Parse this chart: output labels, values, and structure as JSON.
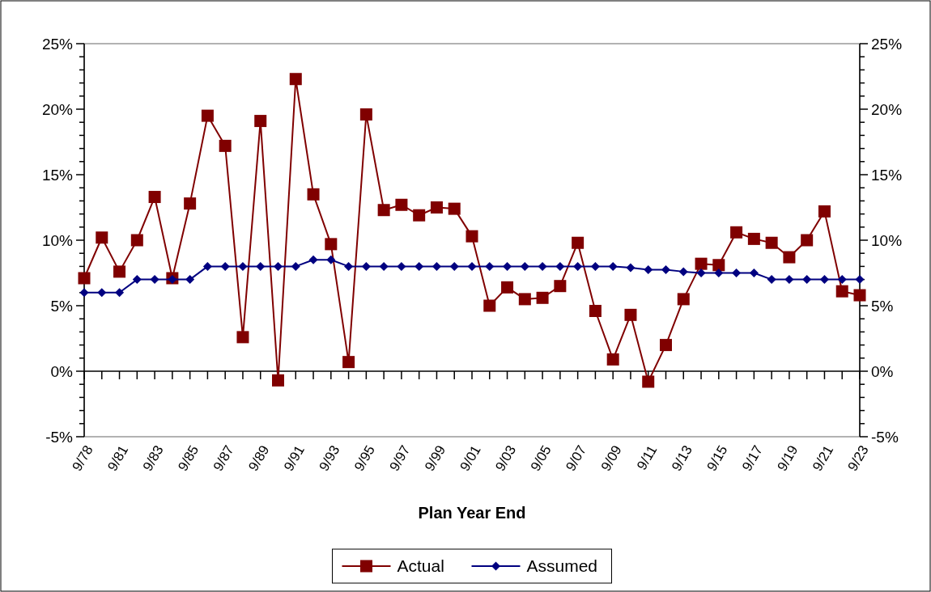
{
  "chart_data": {
    "type": "line",
    "xlabel": "Plan Year End",
    "categories": [
      "9/78",
      null,
      "9/81",
      null,
      "9/83",
      null,
      "9/85",
      null,
      "9/87",
      null,
      "9/89",
      null,
      "9/91",
      null,
      "9/93",
      null,
      "9/95",
      null,
      "9/97",
      null,
      "9/99",
      null,
      "9/01",
      null,
      "9/03",
      null,
      "9/05",
      null,
      "9/07",
      null,
      "9/09",
      null,
      "9/11",
      null,
      "9/13",
      null,
      "9/15",
      null,
      "9/17",
      null,
      "9/19",
      null,
      "9/21",
      null,
      "9/23"
    ],
    "series": [
      {
        "name": "Actual",
        "color": "#800000",
        "marker": "square",
        "values": [
          7.1,
          10.2,
          7.6,
          10.0,
          13.3,
          7.1,
          12.8,
          19.5,
          17.2,
          2.6,
          19.1,
          -0.7,
          22.3,
          13.5,
          9.7,
          0.7,
          19.6,
          12.3,
          12.7,
          11.9,
          12.5,
          12.4,
          10.3,
          5.0,
          6.4,
          5.5,
          5.6,
          6.5,
          9.8,
          4.6,
          0.9,
          4.3,
          -0.8,
          2.0,
          5.5,
          8.2,
          8.1,
          10.6,
          10.1,
          9.8,
          8.7,
          10.0,
          12.2,
          6.1,
          5.8
        ]
      },
      {
        "name": "Assumed",
        "color": "#000080",
        "marker": "diamond",
        "values": [
          6.0,
          6.0,
          6.0,
          7.0,
          7.0,
          7.0,
          7.0,
          8.0,
          8.0,
          8.0,
          8.0,
          8.0,
          8.0,
          8.5,
          8.5,
          8.0,
          8.0,
          8.0,
          8.0,
          8.0,
          8.0,
          8.0,
          8.0,
          8.0,
          8.0,
          8.0,
          8.0,
          8.0,
          8.0,
          8.0,
          8.0,
          7.9,
          7.75,
          7.75,
          7.6,
          7.5,
          7.5,
          7.5,
          7.5,
          7.0,
          7.0,
          7.0,
          7.0,
          7.0,
          7.0
        ]
      }
    ],
    "ylim": [
      -5,
      25
    ],
    "yticks": [
      {
        "value": -5,
        "label": "-5%"
      },
      {
        "value": -4,
        "label": null
      },
      {
        "value": -3,
        "label": null
      },
      {
        "value": -2,
        "label": null
      },
      {
        "value": -1,
        "label": null
      },
      {
        "value": 0,
        "label": "0%"
      },
      {
        "value": 1,
        "label": null
      },
      {
        "value": 2,
        "label": null
      },
      {
        "value": 3,
        "label": null
      },
      {
        "value": 4,
        "label": null
      },
      {
        "value": 5,
        "label": "5%"
      },
      {
        "value": 6,
        "label": null
      },
      {
        "value": 7,
        "label": null
      },
      {
        "value": 8,
        "label": null
      },
      {
        "value": 9,
        "label": null
      },
      {
        "value": 10,
        "label": "10%"
      },
      {
        "value": 11,
        "label": null
      },
      {
        "value": 12,
        "label": null
      },
      {
        "value": 13,
        "label": null
      },
      {
        "value": 14,
        "label": null
      },
      {
        "value": 15,
        "label": "15%"
      },
      {
        "value": 16,
        "label": null
      },
      {
        "value": 17,
        "label": null
      },
      {
        "value": 18,
        "label": null
      },
      {
        "value": 19,
        "label": null
      },
      {
        "value": 20,
        "label": "20%"
      },
      {
        "value": 21,
        "label": null
      },
      {
        "value": 22,
        "label": null
      },
      {
        "value": 23,
        "label": null
      },
      {
        "value": 24,
        "label": null
      },
      {
        "value": 25,
        "label": "25%"
      }
    ],
    "y2lim": [
      -5,
      25
    ],
    "y2ticks": [
      {
        "value": -5,
        "label": "-5%"
      },
      {
        "value": -4,
        "label": null
      },
      {
        "value": -3,
        "label": null
      },
      {
        "value": -2,
        "label": null
      },
      {
        "value": -1,
        "label": null
      },
      {
        "value": 0,
        "label": "0%"
      },
      {
        "value": 1,
        "label": null
      },
      {
        "value": 2,
        "label": null
      },
      {
        "value": 3,
        "label": null
      },
      {
        "value": 4,
        "label": null
      },
      {
        "value": 5,
        "label": "5%"
      },
      {
        "value": 6,
        "label": null
      },
      {
        "value": 7,
        "label": null
      },
      {
        "value": 8,
        "label": null
      },
      {
        "value": 9,
        "label": null
      },
      {
        "value": 10,
        "label": "10%"
      },
      {
        "value": 11,
        "label": null
      },
      {
        "value": 12,
        "label": null
      },
      {
        "value": 13,
        "label": null
      },
      {
        "value": 14,
        "label": null
      },
      {
        "value": 15,
        "label": "15%"
      },
      {
        "value": 16,
        "label": null
      },
      {
        "value": 17,
        "label": null
      },
      {
        "value": 18,
        "label": null
      },
      {
        "value": 19,
        "label": null
      },
      {
        "value": 20,
        "label": "20%"
      },
      {
        "value": 21,
        "label": null
      },
      {
        "value": 22,
        "label": null
      },
      {
        "value": 23,
        "label": null
      },
      {
        "value": 24,
        "label": null
      },
      {
        "value": 25,
        "label": "25%"
      }
    ],
    "legend": "bottom",
    "line_style": "solid"
  }
}
